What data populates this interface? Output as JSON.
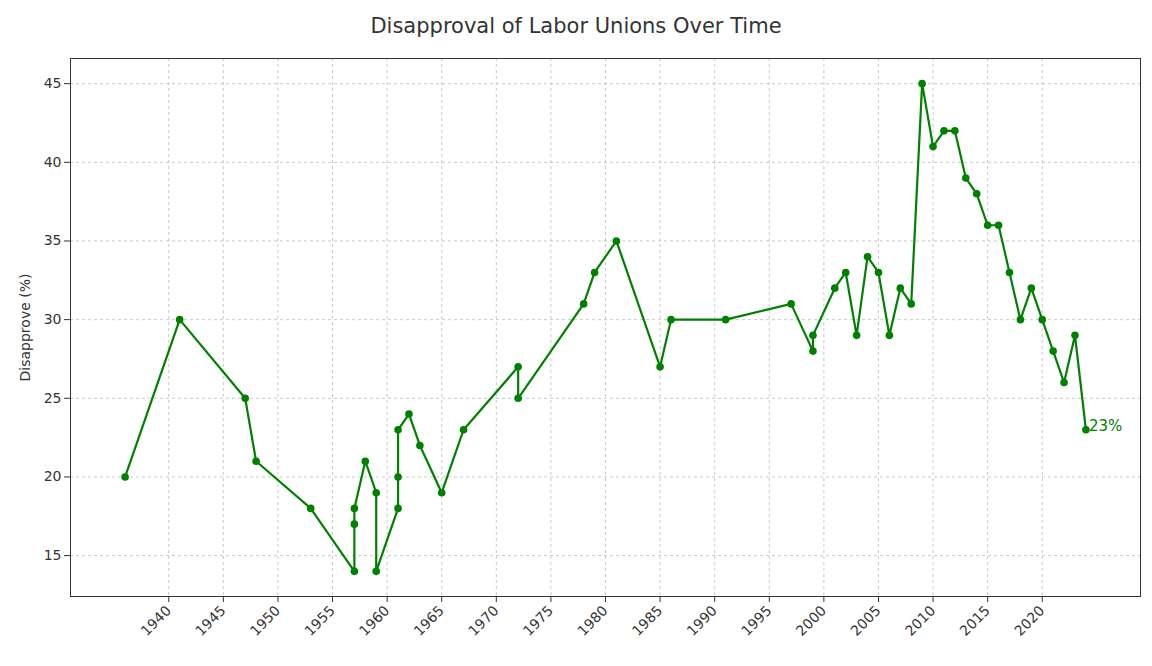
{
  "chart_data": {
    "type": "line",
    "title": "Disapproval of Labor Unions Over Time",
    "y_label": "Disapprove (%)",
    "x": [
      1936,
      1941,
      1947,
      1948,
      1953,
      1957,
      1957,
      1957,
      1958,
      1959,
      1959,
      1961,
      1961,
      1961,
      1962,
      1963,
      1965,
      1967,
      1972,
      1972,
      1978,
      1979,
      1981,
      1985,
      1986,
      1991,
      1997,
      1999,
      1999,
      2001,
      2002,
      2003,
      2004,
      2005,
      2006,
      2007,
      2008,
      2009,
      2010,
      2011,
      2012,
      2013,
      2014,
      2015,
      2016,
      2017,
      2018,
      2019,
      2020,
      2021,
      2022,
      2023,
      2024
    ],
    "values": [
      20,
      30,
      25,
      21,
      18,
      14,
      17,
      18,
      21,
      19,
      14,
      18,
      20,
      23,
      24,
      22,
      19,
      23,
      27,
      25,
      31,
      33,
      35,
      27,
      30,
      30,
      31,
      28,
      29,
      32,
      33,
      29,
      34,
      33,
      29,
      32,
      31,
      45,
      41,
      42,
      42,
      39,
      38,
      36,
      36,
      33,
      30,
      32,
      30,
      28,
      26,
      29,
      23
    ],
    "color": "green",
    "marker": "circle",
    "line_style": "solid",
    "xlim": [
      1931,
      2029
    ],
    "xticks": [
      1940,
      1945,
      1950,
      1955,
      1960,
      1965,
      1970,
      1975,
      1980,
      1985,
      1990,
      1995,
      2000,
      2005,
      2010,
      2015,
      2020
    ],
    "ylim": [
      12.4,
      46.6
    ],
    "yticks": [
      15,
      20,
      25,
      30,
      35,
      40,
      45
    ],
    "grid": true,
    "annotations": [
      {
        "text": "23%",
        "x": 2024,
        "y": 23
      }
    ]
  }
}
